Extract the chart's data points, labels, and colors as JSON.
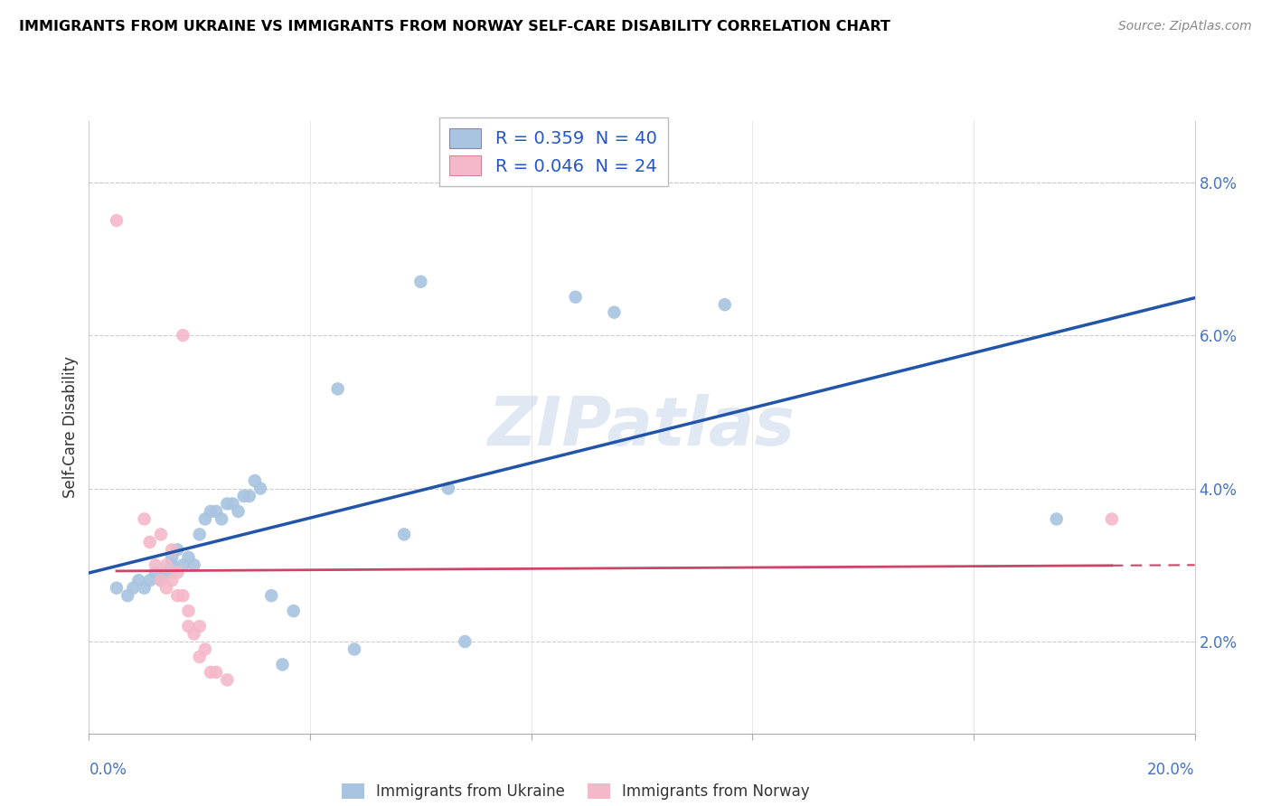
{
  "title": "IMMIGRANTS FROM UKRAINE VS IMMIGRANTS FROM NORWAY SELF-CARE DISABILITY CORRELATION CHART",
  "source": "Source: ZipAtlas.com",
  "ylabel": "Self-Care Disability",
  "right_yticks": [
    "2.0%",
    "4.0%",
    "6.0%",
    "8.0%"
  ],
  "right_ytick_vals": [
    0.02,
    0.04,
    0.06,
    0.08
  ],
  "xlim": [
    0.0,
    0.2
  ],
  "ylim": [
    0.008,
    0.088
  ],
  "ukraine_color": "#a8c4e0",
  "norway_color": "#f4b8c8",
  "ukraine_line_color": "#2255aa",
  "norway_line_color": "#cc4466",
  "ukraine_scatter": [
    [
      0.005,
      0.027
    ],
    [
      0.007,
      0.026
    ],
    [
      0.008,
      0.027
    ],
    [
      0.009,
      0.028
    ],
    [
      0.01,
      0.027
    ],
    [
      0.011,
      0.028
    ],
    [
      0.012,
      0.029
    ],
    [
      0.013,
      0.028
    ],
    [
      0.014,
      0.029
    ],
    [
      0.015,
      0.03
    ],
    [
      0.015,
      0.031
    ],
    [
      0.016,
      0.032
    ],
    [
      0.017,
      0.03
    ],
    [
      0.018,
      0.031
    ],
    [
      0.019,
      0.03
    ],
    [
      0.02,
      0.034
    ],
    [
      0.021,
      0.036
    ],
    [
      0.022,
      0.037
    ],
    [
      0.023,
      0.037
    ],
    [
      0.024,
      0.036
    ],
    [
      0.025,
      0.038
    ],
    [
      0.026,
      0.038
    ],
    [
      0.027,
      0.037
    ],
    [
      0.028,
      0.039
    ],
    [
      0.029,
      0.039
    ],
    [
      0.03,
      0.041
    ],
    [
      0.031,
      0.04
    ],
    [
      0.033,
      0.026
    ],
    [
      0.035,
      0.017
    ],
    [
      0.037,
      0.024
    ],
    [
      0.045,
      0.053
    ],
    [
      0.048,
      0.019
    ],
    [
      0.057,
      0.034
    ],
    [
      0.06,
      0.067
    ],
    [
      0.065,
      0.04
    ],
    [
      0.068,
      0.02
    ],
    [
      0.088,
      0.065
    ],
    [
      0.095,
      0.063
    ],
    [
      0.115,
      0.064
    ],
    [
      0.175,
      0.036
    ]
  ],
  "norway_scatter": [
    [
      0.005,
      0.075
    ],
    [
      0.01,
      0.036
    ],
    [
      0.011,
      0.033
    ],
    [
      0.012,
      0.03
    ],
    [
      0.013,
      0.034
    ],
    [
      0.013,
      0.028
    ],
    [
      0.014,
      0.03
    ],
    [
      0.014,
      0.027
    ],
    [
      0.015,
      0.032
    ],
    [
      0.015,
      0.028
    ],
    [
      0.016,
      0.029
    ],
    [
      0.016,
      0.026
    ],
    [
      0.017,
      0.026
    ],
    [
      0.017,
      0.06
    ],
    [
      0.018,
      0.024
    ],
    [
      0.018,
      0.022
    ],
    [
      0.019,
      0.021
    ],
    [
      0.02,
      0.022
    ],
    [
      0.02,
      0.018
    ],
    [
      0.021,
      0.019
    ],
    [
      0.022,
      0.016
    ],
    [
      0.023,
      0.016
    ],
    [
      0.025,
      0.015
    ],
    [
      0.185,
      0.036
    ]
  ]
}
